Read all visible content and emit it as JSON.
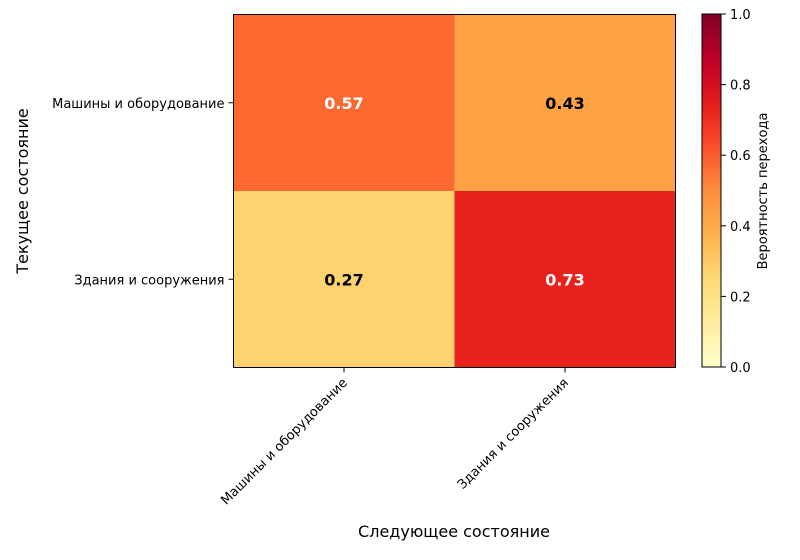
{
  "chart_data": {
    "type": "heatmap",
    "title": "",
    "xlabel": "Следующее состояние",
    "ylabel": "Текущее состояние",
    "x_categories": [
      "Машины и оборудование",
      "Здания и сооружения"
    ],
    "y_categories": [
      "Машины и оборудование",
      "Здания и сооружения"
    ],
    "values": [
      [
        0.57,
        0.43
      ],
      [
        0.27,
        0.73
      ]
    ],
    "value_labels": [
      [
        "0.57",
        "0.43"
      ],
      [
        "0.27",
        "0.73"
      ]
    ],
    "colorbar": {
      "label": "Вероятность перехода",
      "range": [
        0.0,
        1.0
      ],
      "ticks": [
        "0.0",
        "0.2",
        "0.4",
        "0.6",
        "0.8",
        "1.0"
      ],
      "colormap": "YlOrRd"
    }
  }
}
